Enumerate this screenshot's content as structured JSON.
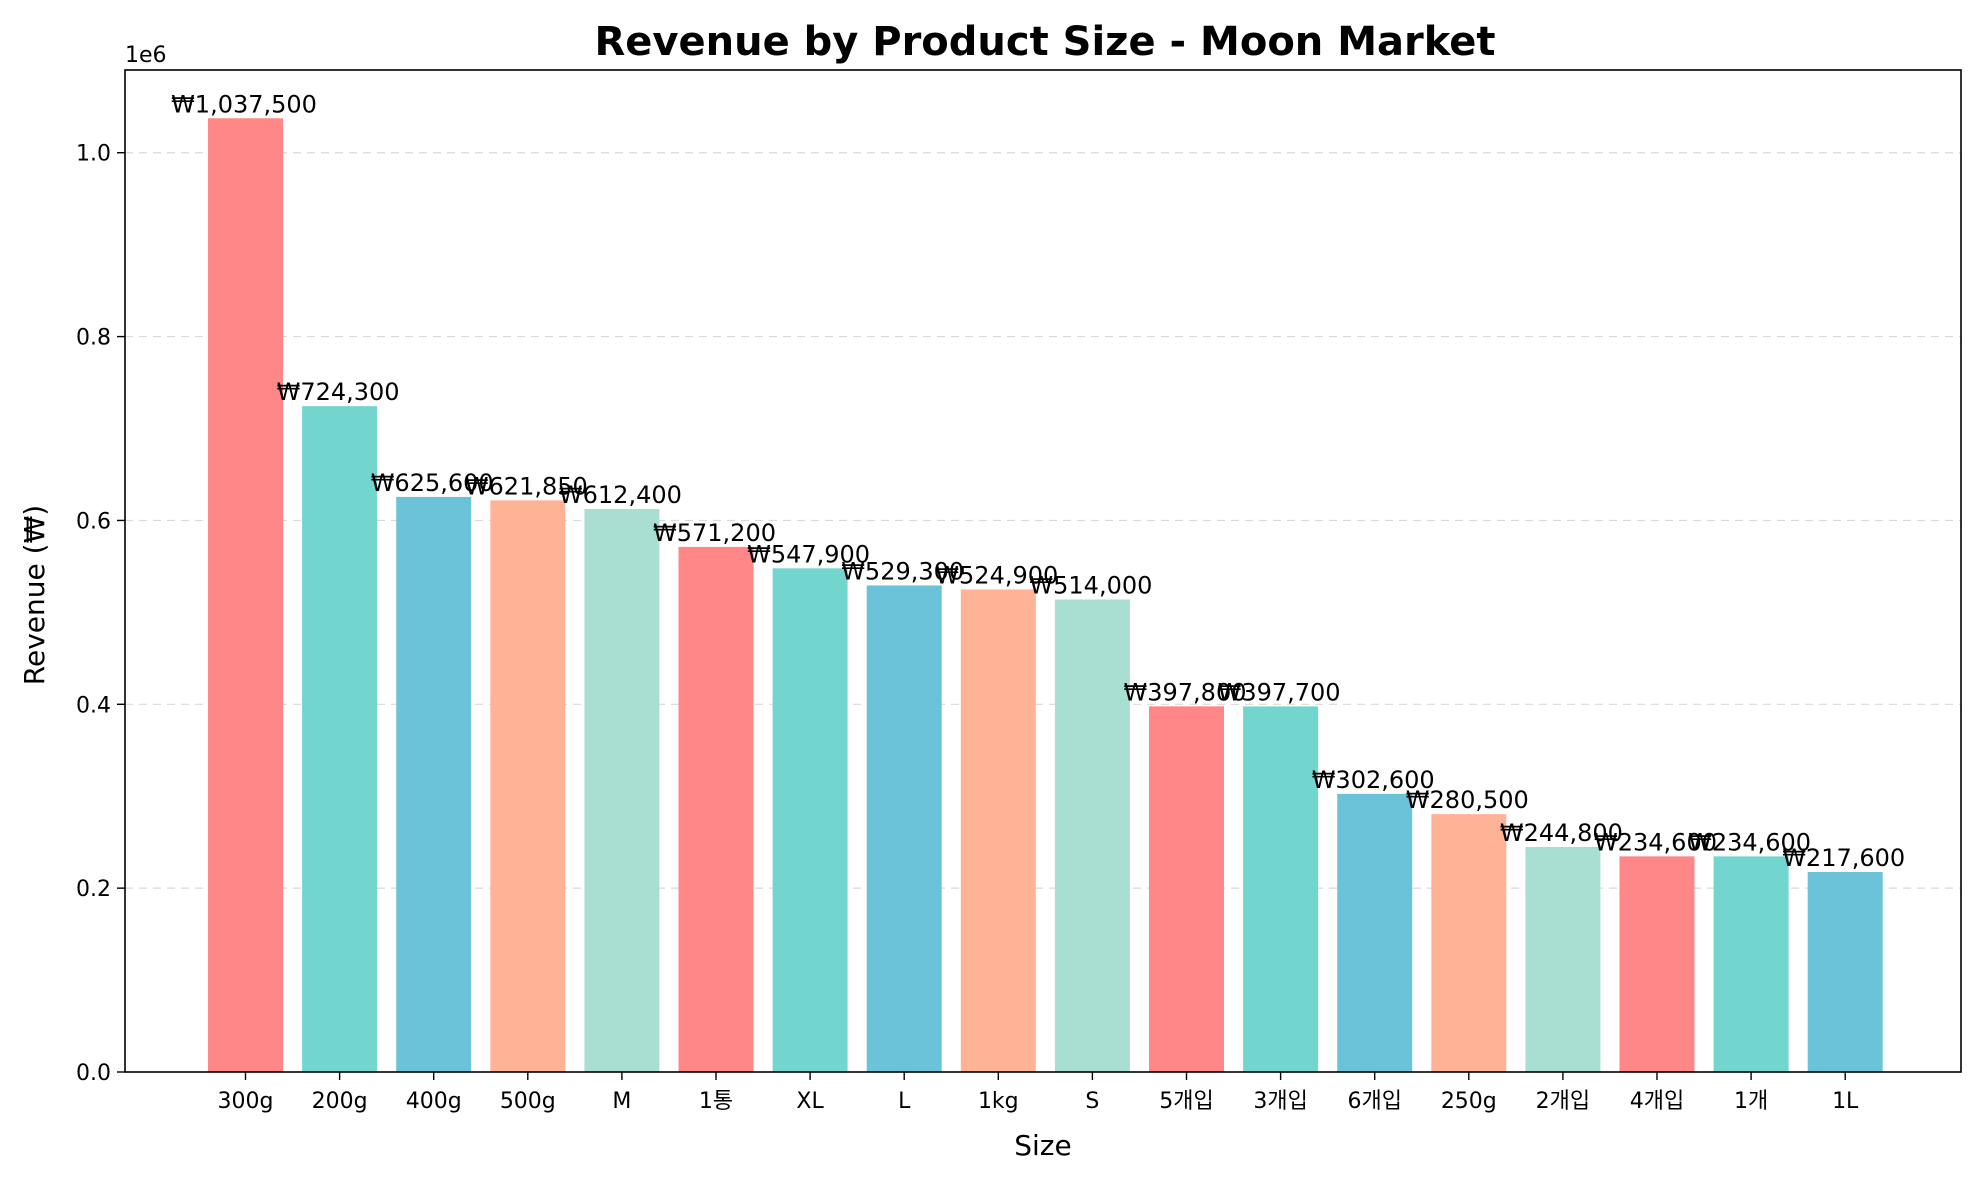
{
  "chart_data": {
    "type": "bar",
    "title": "Revenue by Product Size - Moon Market",
    "xlabel": "Size",
    "ylabel": "Revenue (₩)",
    "y_multiplier_label": "1e6",
    "categories": [
      "300g",
      "200g",
      "400g",
      "500g",
      "M",
      "1통",
      "XL",
      "L",
      "1kg",
      "S",
      "5개입",
      "3개입",
      "6개입",
      "250g",
      "2개입",
      "4개입",
      "1개",
      "1L"
    ],
    "values": [
      1037500,
      724300,
      625600,
      621850,
      612400,
      571200,
      547900,
      529300,
      524900,
      514000,
      397800,
      397700,
      302600,
      280500,
      244800,
      234600,
      234600,
      217600
    ],
    "value_labels": [
      "₩1,037,500",
      "₩724,300",
      "₩625,600",
      "₩621,850",
      "₩612,400",
      "₩571,200",
      "₩547,900",
      "₩529,300",
      "₩524,900",
      "₩514,000",
      "₩397,800",
      "₩397,700",
      "₩302,600",
      "₩280,500",
      "₩244,800",
      "₩234,600",
      "₩234,600",
      "₩217,600"
    ],
    "colors": [
      "#FF8787",
      "#72D6CF",
      "#6BC3DA",
      "#FFB396",
      "#A9DED3"
    ],
    "ylim": [
      0,
      1090000
    ],
    "yticks": [
      0,
      200000,
      400000,
      600000,
      800000,
      1000000
    ],
    "ytick_labels": [
      "0.0",
      "0.2",
      "0.4",
      "0.6",
      "0.8",
      "1.0"
    ],
    "grid": true,
    "grid_axis": "y",
    "legend": "none"
  }
}
